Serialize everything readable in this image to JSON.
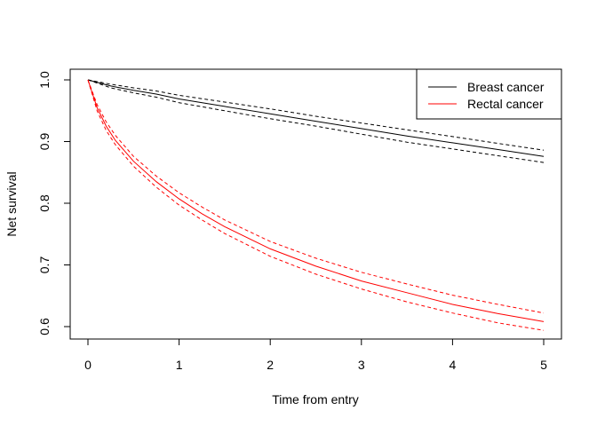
{
  "chart_data": {
    "type": "line",
    "title": "",
    "xlabel": "Time from entry",
    "ylabel": "Net survival",
    "xlim": [
      0,
      5
    ],
    "ylim": [
      0.6,
      1.0
    ],
    "xticks": [
      0,
      1,
      2,
      3,
      4,
      5
    ],
    "yticks": [
      0.6,
      0.7,
      0.8,
      0.9,
      1.0
    ],
    "xtick_labels": [
      "0",
      "1",
      "2",
      "3",
      "4",
      "5"
    ],
    "ytick_labels": [
      "0.6",
      "0.7",
      "0.8",
      "0.9",
      "1.0"
    ],
    "grid": false,
    "legend": {
      "position": "top-right",
      "entries": [
        {
          "label": "Breast cancer",
          "color": "#000000"
        },
        {
          "label": "Rectal cancer",
          "color": "#ff0000"
        }
      ]
    },
    "series": [
      {
        "name": "Breast cancer",
        "color": "#000000",
        "x": [
          0,
          0.25,
          0.5,
          0.75,
          1.0,
          1.5,
          2.0,
          2.5,
          3.0,
          3.5,
          4.0,
          4.5,
          5.0
        ],
        "estimate": [
          1.0,
          0.99,
          0.983,
          0.977,
          0.969,
          0.957,
          0.945,
          0.933,
          0.921,
          0.909,
          0.898,
          0.887,
          0.876
        ],
        "lower": [
          1.0,
          0.987,
          0.979,
          0.972,
          0.963,
          0.95,
          0.937,
          0.925,
          0.912,
          0.899,
          0.888,
          0.877,
          0.866
        ],
        "upper": [
          1.0,
          0.993,
          0.987,
          0.982,
          0.975,
          0.964,
          0.953,
          0.941,
          0.93,
          0.919,
          0.908,
          0.897,
          0.886
        ]
      },
      {
        "name": "Rectal cancer",
        "color": "#ff0000",
        "x": [
          0,
          0.1,
          0.2,
          0.3,
          0.5,
          0.75,
          1.0,
          1.25,
          1.5,
          2.0,
          2.5,
          3.0,
          3.5,
          4.0,
          4.5,
          5.0
        ],
        "estimate": [
          1.0,
          0.955,
          0.925,
          0.902,
          0.868,
          0.835,
          0.807,
          0.783,
          0.762,
          0.726,
          0.698,
          0.674,
          0.655,
          0.636,
          0.621,
          0.608
        ],
        "lower": [
          1.0,
          0.95,
          0.918,
          0.895,
          0.86,
          0.826,
          0.797,
          0.773,
          0.751,
          0.714,
          0.685,
          0.661,
          0.64,
          0.622,
          0.606,
          0.594
        ],
        "upper": [
          1.0,
          0.96,
          0.932,
          0.91,
          0.876,
          0.844,
          0.817,
          0.794,
          0.773,
          0.738,
          0.711,
          0.688,
          0.669,
          0.651,
          0.636,
          0.622
        ]
      }
    ]
  }
}
